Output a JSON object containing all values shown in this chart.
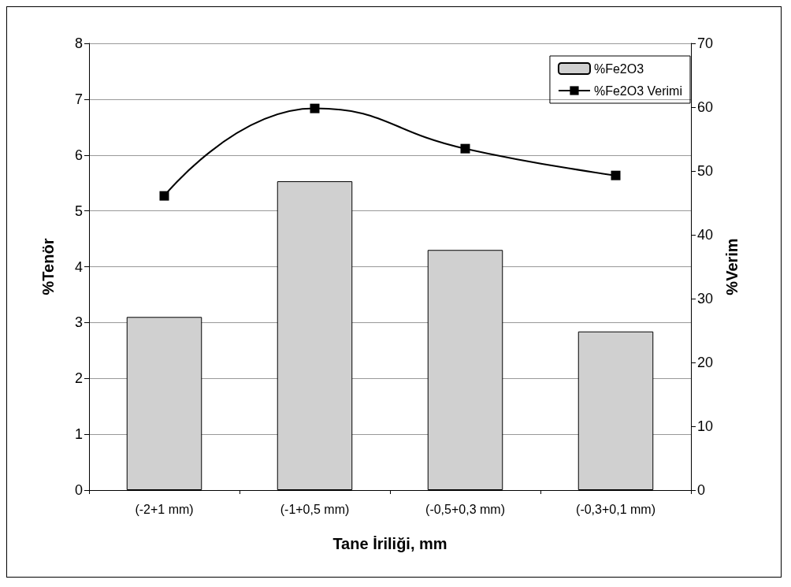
{
  "chart_data": {
    "type": "bar",
    "xlabel": "Tane İriliği, mm",
    "ylabel": "%Tenör",
    "y2label": "%Verim",
    "categories": [
      "(-2+1 mm)",
      "(-1+0,5 mm)",
      "(-0,5+0,3 mm)",
      "(-0,3+0,1 mm)"
    ],
    "series": [
      {
        "name": "%Fe2O3",
        "color": "#d0d0d0",
        "values": [
          3.1,
          5.53,
          4.3,
          2.84
        ]
      },
      {
        "name": "%Fe2O3 Verimi",
        "type": "line",
        "axis": "y2",
        "color": "#000000",
        "values": [
          46.1,
          59.8,
          53.5,
          49.3
        ],
        "marker": "square"
      }
    ],
    "ylim": [
      0,
      8
    ],
    "yticks": [
      0,
      1,
      2,
      3,
      4,
      5,
      6,
      7,
      8
    ],
    "y2lim": [
      0,
      70
    ],
    "y2ticks": [
      0,
      10,
      20,
      30,
      40,
      50,
      60,
      70
    ],
    "grid": "y",
    "legend": "top right"
  }
}
